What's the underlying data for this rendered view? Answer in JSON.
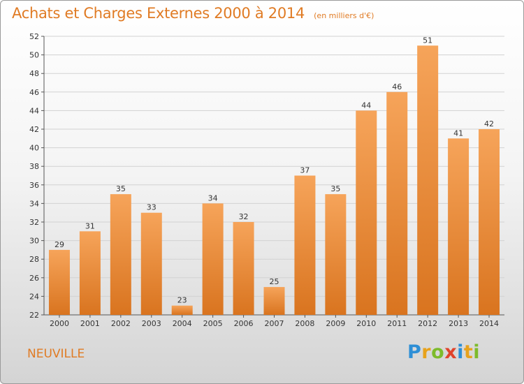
{
  "header": {
    "title": "Achats et Charges Externes 2000 à 2014",
    "subtitle": "(en milliers d'€)"
  },
  "footer": {
    "commune": "NEUVILLE",
    "logo_letters": [
      "P",
      "r",
      "o",
      "x",
      "i",
      "t",
      "i"
    ],
    "logo_colors": [
      "#2e8fd6",
      "#e8a21c",
      "#7dbb2c",
      "#e0432b",
      "#2e8fd6",
      "#e8a21c",
      "#7dbb2c"
    ]
  },
  "colors": {
    "bar_light": "#f6a45a",
    "bar_dark": "#d9741f",
    "accent": "#e07b24"
  },
  "chart_data": {
    "type": "bar",
    "title": "Achats et Charges Externes 2000 à 2014",
    "subtitle": "(en milliers d'€)",
    "xlabel": "",
    "ylabel": "",
    "categories": [
      "2000",
      "2001",
      "2002",
      "2003",
      "2004",
      "2005",
      "2006",
      "2007",
      "2008",
      "2009",
      "2010",
      "2011",
      "2012",
      "2013",
      "2014"
    ],
    "values": [
      29,
      31,
      35,
      33,
      23,
      34,
      32,
      25,
      37,
      35,
      44,
      46,
      51,
      41,
      42
    ],
    "ylim": [
      22,
      52
    ],
    "yticks": [
      22,
      24,
      26,
      28,
      30,
      32,
      34,
      36,
      38,
      40,
      42,
      44,
      46,
      48,
      50,
      52
    ],
    "grid": true,
    "legend": "none"
  }
}
